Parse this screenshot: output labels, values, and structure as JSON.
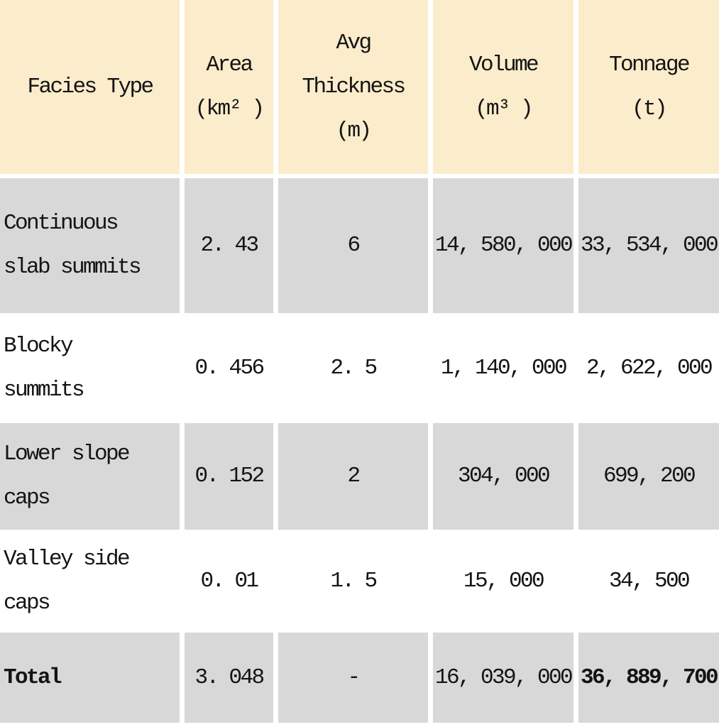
{
  "table": {
    "header": [
      "Facies Type",
      "Area\n(km² )",
      "Avg\nThickness\n(m)",
      "Volume\n(m³ )",
      "Tonnage\n(t)"
    ],
    "rows": [
      {
        "cells": [
          "Continuous\nslab summits",
          "2. 43",
          "6",
          "14, 580, 000",
          "33, 534, 000"
        ]
      },
      {
        "cells": [
          "Blocky\nsummits",
          "0. 456",
          "2. 5",
          "1, 140, 000",
          "2, 622, 000"
        ]
      },
      {
        "cells": [
          "Lower slope\ncaps",
          "0. 152",
          "2",
          "304, 000",
          "699, 200"
        ]
      },
      {
        "cells": [
          "Valley side\ncaps",
          "0. 01",
          "1. 5",
          "15, 000",
          "34, 500"
        ]
      },
      {
        "cells": [
          "Total",
          "3. 048",
          "-",
          "16, 039, 000",
          "36, 889, 700"
        ]
      }
    ]
  },
  "colors": {
    "header_bg": "#fbeccb",
    "row_alt_bg": "#d8d8d8",
    "row_bg": "#ffffff",
    "text": "#141414"
  },
  "chart_data": {
    "type": "table",
    "title": "",
    "columns": [
      "Facies Type",
      "Area (km²)",
      "Avg Thickness (m)",
      "Volume (m³)",
      "Tonnage (t)"
    ],
    "rows": [
      [
        "Continuous slab summits",
        2.43,
        6,
        14580000,
        33534000
      ],
      [
        "Blocky summits",
        0.456,
        2.5,
        1140000,
        2622000
      ],
      [
        "Lower slope caps",
        0.152,
        2,
        304000,
        699200
      ],
      [
        "Valley side caps",
        0.01,
        1.5,
        15000,
        34500
      ],
      [
        "Total",
        3.048,
        "-",
        16039000,
        36889700
      ]
    ],
    "notes": "Total row label and total Tonnage value are bold; header row cream background; data rows alternate gray/white starting gray"
  }
}
